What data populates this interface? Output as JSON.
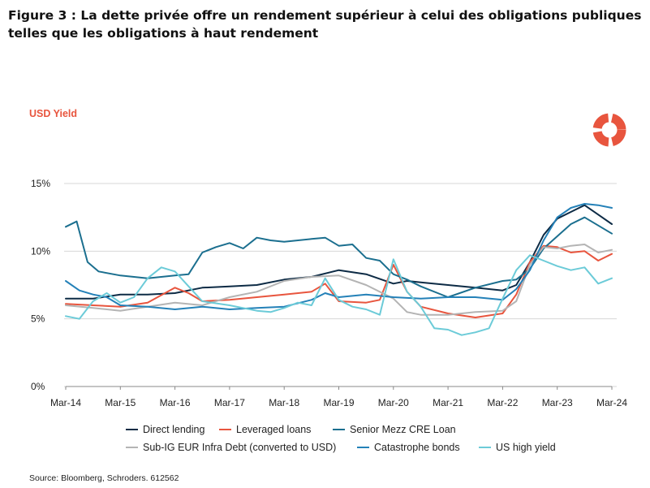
{
  "title": "Figure 3 : La dette privée offre un rendement supérieur à celui des obligations publiques telles que les obligations à haut rendement",
  "yield_label": "USD Yield",
  "source": "Source: Bloomberg, Schroders.  612562",
  "colors": {
    "accent": "#e8553e",
    "grid": "#d7d7d7",
    "axis": "#888888"
  },
  "chart_data": {
    "type": "line",
    "title": "",
    "xlabel": "",
    "ylabel": "USD Yield",
    "xlim": [
      2014.0,
      2024.0
    ],
    "ylim": [
      0,
      15
    ],
    "yticks": [
      0,
      5,
      10,
      15
    ],
    "ytick_labels": [
      "0%",
      "5%",
      "10%",
      "15%"
    ],
    "xticks": [
      2014,
      2015,
      2016,
      2017,
      2018,
      2019,
      2020,
      2021,
      2022,
      2023,
      2024
    ],
    "xtick_labels": [
      "Mar-14",
      "Mar-15",
      "Mar-16",
      "Mar-17",
      "Mar-18",
      "Mar-19",
      "Mar-20",
      "Mar-21",
      "Mar-22",
      "Mar-23",
      "Mar-24"
    ],
    "grid": true,
    "legend_position": "bottom",
    "series": [
      {
        "name": "Direct lending",
        "color": "#0d2b45",
        "x": [
          2014.0,
          2014.5,
          2015.0,
          2015.5,
          2016.0,
          2016.5,
          2017.0,
          2017.5,
          2018.0,
          2018.5,
          2019.0,
          2019.5,
          2020.0,
          2020.25,
          2020.5,
          2021.0,
          2021.5,
          2022.0,
          2022.25,
          2022.5,
          2022.75,
          2023.0,
          2023.25,
          2023.5,
          2023.75,
          2024.0
        ],
        "y": [
          6.5,
          6.5,
          6.8,
          6.8,
          6.9,
          7.3,
          7.4,
          7.5,
          7.9,
          8.1,
          8.6,
          8.3,
          7.6,
          7.8,
          7.7,
          7.5,
          7.3,
          7.1,
          7.5,
          9.2,
          11.2,
          12.4,
          12.9,
          13.4,
          12.7,
          12.0
        ]
      },
      {
        "name": "Leveraged loans",
        "color": "#e8553e",
        "x": [
          2014.0,
          2014.5,
          2015.0,
          2015.5,
          2016.0,
          2016.25,
          2016.5,
          2017.0,
          2017.5,
          2018.0,
          2018.5,
          2018.75,
          2019.0,
          2019.5,
          2019.75,
          2020.0,
          2020.25,
          2020.5,
          2021.0,
          2021.5,
          2022.0,
          2022.25,
          2022.5,
          2022.75,
          2023.0,
          2023.25,
          2023.5,
          2023.75,
          2024.0
        ],
        "y": [
          6.1,
          6.0,
          5.9,
          6.2,
          7.3,
          6.9,
          6.3,
          6.4,
          6.6,
          6.8,
          7.0,
          7.6,
          6.3,
          6.2,
          6.4,
          9.0,
          7.0,
          5.9,
          5.4,
          5.1,
          5.4,
          6.8,
          9.2,
          10.4,
          10.3,
          9.9,
          10.0,
          9.3,
          9.8
        ]
      },
      {
        "name": "Senior Mezz CRE Loan",
        "color": "#1b6f8f",
        "x": [
          2014.0,
          2014.2,
          2014.4,
          2014.6,
          2015.0,
          2015.5,
          2016.0,
          2016.25,
          2016.5,
          2016.75,
          2017.0,
          2017.25,
          2017.5,
          2017.75,
          2018.0,
          2018.5,
          2018.75,
          2019.0,
          2019.25,
          2019.5,
          2019.75,
          2020.0,
          2020.25,
          2020.5,
          2021.0,
          2021.5,
          2022.0,
          2022.25,
          2022.5,
          2022.75,
          2023.0,
          2023.25,
          2023.5,
          2023.75,
          2024.0
        ],
        "y": [
          11.8,
          12.2,
          9.2,
          8.5,
          8.2,
          8.0,
          8.2,
          8.3,
          9.9,
          10.3,
          10.6,
          10.2,
          11.0,
          10.8,
          10.7,
          10.9,
          11.0,
          10.4,
          10.5,
          9.5,
          9.3,
          8.3,
          7.9,
          7.4,
          6.6,
          7.3,
          7.8,
          7.9,
          8.7,
          10.2,
          11.1,
          12.0,
          12.5,
          11.9,
          11.3
        ]
      },
      {
        "name": "Sub-IG EUR Infra Debt (converted to USD)",
        "color": "#b4b4b4",
        "x": [
          2014.0,
          2014.5,
          2015.0,
          2015.5,
          2016.0,
          2016.5,
          2017.0,
          2017.5,
          2018.0,
          2018.5,
          2019.0,
          2019.5,
          2020.0,
          2020.25,
          2020.5,
          2021.0,
          2021.5,
          2022.0,
          2022.25,
          2022.5,
          2022.75,
          2023.0,
          2023.25,
          2023.5,
          2023.75,
          2024.0
        ],
        "y": [
          6.0,
          5.8,
          5.6,
          5.9,
          6.2,
          6.0,
          6.6,
          7.0,
          7.8,
          8.1,
          8.2,
          7.5,
          6.5,
          5.5,
          5.3,
          5.3,
          5.5,
          5.6,
          6.3,
          9.0,
          10.3,
          10.2,
          10.4,
          10.5,
          9.9,
          10.1
        ]
      },
      {
        "name": "Catastrophe bonds",
        "color": "#2481b8",
        "x": [
          2014.0,
          2014.25,
          2014.5,
          2014.75,
          2015.0,
          2015.5,
          2016.0,
          2016.5,
          2017.0,
          2017.5,
          2018.0,
          2018.5,
          2018.75,
          2019.0,
          2019.5,
          2020.0,
          2020.5,
          2021.0,
          2021.5,
          2022.0,
          2022.25,
          2022.5,
          2022.75,
          2023.0,
          2023.25,
          2023.5,
          2023.75,
          2024.0
        ],
        "y": [
          7.8,
          7.1,
          6.8,
          6.6,
          6.0,
          5.9,
          5.7,
          5.9,
          5.7,
          5.8,
          5.9,
          6.4,
          6.9,
          6.6,
          6.8,
          6.6,
          6.5,
          6.6,
          6.6,
          6.4,
          7.2,
          8.6,
          10.8,
          12.5,
          13.2,
          13.5,
          13.4,
          13.2
        ]
      },
      {
        "name": "US high yield",
        "color": "#6ccbd8",
        "x": [
          2014.0,
          2014.25,
          2014.5,
          2014.75,
          2015.0,
          2015.25,
          2015.5,
          2015.75,
          2016.0,
          2016.25,
          2016.5,
          2017.0,
          2017.5,
          2017.75,
          2018.0,
          2018.25,
          2018.5,
          2018.75,
          2019.0,
          2019.25,
          2019.5,
          2019.75,
          2020.0,
          2020.25,
          2020.5,
          2020.75,
          2021.0,
          2021.25,
          2021.5,
          2021.75,
          2022.0,
          2022.25,
          2022.5,
          2022.75,
          2023.0,
          2023.25,
          2023.5,
          2023.75,
          2024.0
        ],
        "y": [
          5.2,
          5.0,
          6.3,
          6.9,
          6.2,
          6.6,
          8.0,
          8.8,
          8.5,
          7.4,
          6.3,
          6.0,
          5.6,
          5.5,
          5.8,
          6.2,
          6.0,
          8.0,
          6.4,
          5.9,
          5.7,
          5.3,
          9.4,
          7.0,
          5.9,
          4.3,
          4.2,
          3.8,
          4.0,
          4.3,
          6.5,
          8.6,
          9.7,
          9.3,
          8.9,
          8.6,
          8.8,
          7.6,
          8.0
        ]
      }
    ]
  }
}
